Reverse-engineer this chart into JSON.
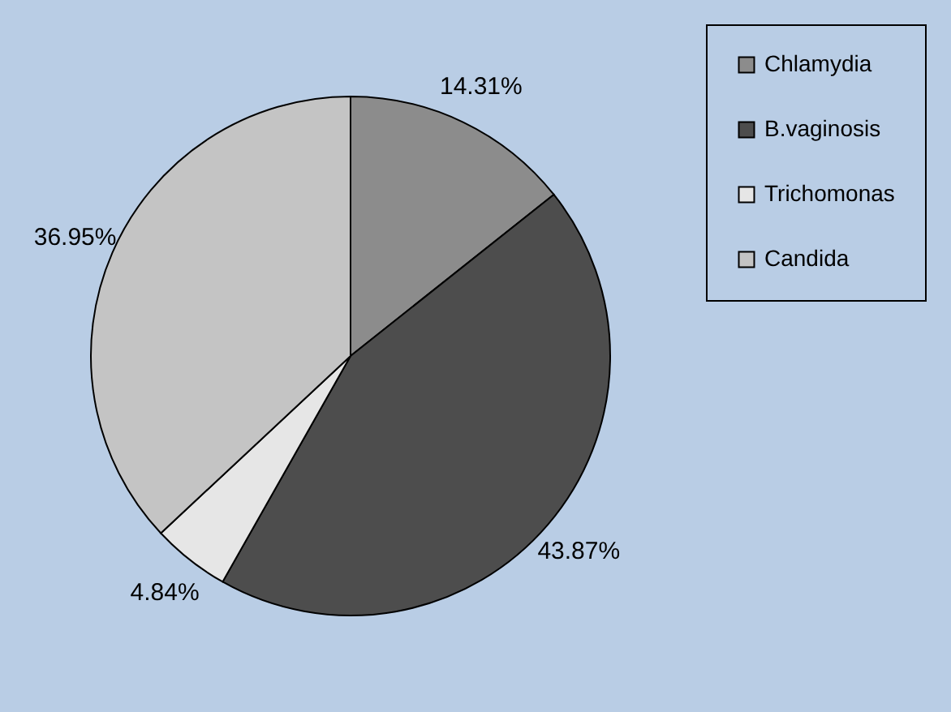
{
  "chart_data": {
    "type": "pie",
    "categories": [
      "Chlamydia",
      "B.vaginosis",
      "Trichomonas",
      "Candida"
    ],
    "values": [
      14.31,
      43.87,
      4.84,
      36.95
    ],
    "colors": [
      "#8c8c8c",
      "#4d4d4d",
      "#e6e6e6",
      "#c4c4c4"
    ],
    "value_labels": [
      "14.31%",
      "43.87%",
      "4.84%",
      "36.95%"
    ],
    "legend": "right"
  }
}
